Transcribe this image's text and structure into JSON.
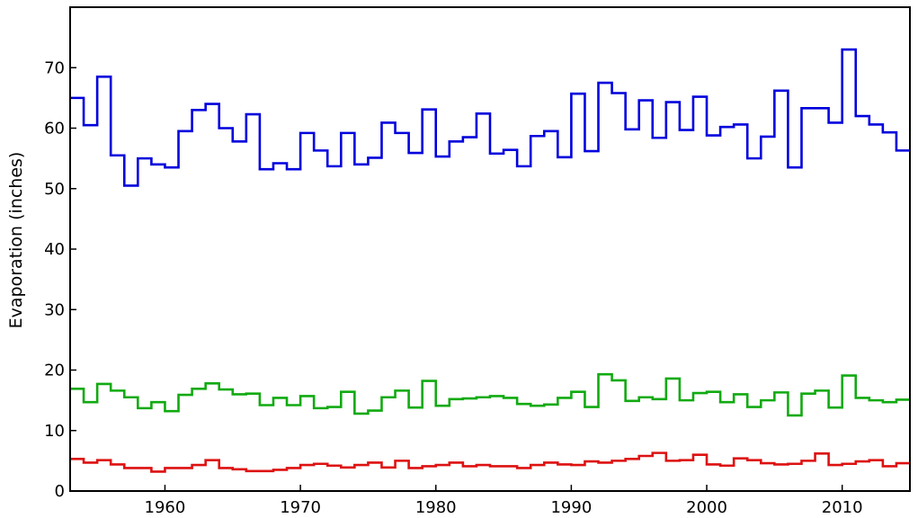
{
  "chart_data": {
    "type": "line",
    "step": true,
    "title": "",
    "xlabel": "",
    "ylabel": "Evaporation (inches)",
    "xlim": [
      1953,
      2015
    ],
    "ylim": [
      0,
      80
    ],
    "xticks": [
      1960,
      1970,
      1980,
      1990,
      2000,
      2010
    ],
    "yticks": [
      0,
      10,
      20,
      30,
      40,
      50,
      60,
      70
    ],
    "grid": false,
    "legend": "none",
    "x": [
      1953,
      1954,
      1955,
      1956,
      1957,
      1958,
      1959,
      1960,
      1961,
      1962,
      1963,
      1964,
      1965,
      1966,
      1967,
      1968,
      1969,
      1970,
      1971,
      1972,
      1973,
      1974,
      1975,
      1976,
      1977,
      1978,
      1979,
      1980,
      1981,
      1982,
      1983,
      1984,
      1985,
      1986,
      1987,
      1988,
      1989,
      1990,
      1991,
      1992,
      1993,
      1994,
      1995,
      1996,
      1997,
      1998,
      1999,
      2000,
      2001,
      2002,
      2003,
      2004,
      2005,
      2006,
      2007,
      2008,
      2009,
      2010,
      2011,
      2012,
      2013,
      2014
    ],
    "series": [
      {
        "color": "#0000dd",
        "values": [
          65,
          60.5,
          68.5,
          55.5,
          50.5,
          55,
          54,
          53.5,
          59.5,
          63,
          64,
          60,
          57.8,
          62.3,
          53.2,
          54.2,
          53.2,
          59.2,
          56.3,
          53.7,
          59.2,
          54,
          55.1,
          60.9,
          59.2,
          55.9,
          63.1,
          55.3,
          57.8,
          58.5,
          62.4,
          55.8,
          56.4,
          53.7,
          58.7,
          59.5,
          55.2,
          65.7,
          56.2,
          67.5,
          65.8,
          59.8,
          64.6,
          58.4,
          64.3,
          59.7,
          65.2,
          58.8,
          60.2,
          60.6,
          55,
          58.6,
          66.2,
          53.5,
          63.3,
          63.3,
          60.9,
          73,
          62,
          60.6,
          59.3,
          56.3
        ]
      },
      {
        "color": "#11aa11",
        "values": [
          16.9,
          14.7,
          17.7,
          16.6,
          15.5,
          13.7,
          14.7,
          13.2,
          15.9,
          16.9,
          17.8,
          16.8,
          16,
          16.1,
          14.2,
          15.4,
          14.2,
          15.7,
          13.7,
          13.9,
          16.4,
          12.8,
          13.3,
          15.5,
          16.6,
          13.8,
          18.2,
          14.1,
          15.2,
          15.3,
          15.5,
          15.7,
          15.4,
          14.4,
          14.1,
          14.3,
          15.4,
          16.4,
          13.9,
          19.3,
          18.3,
          14.9,
          15.5,
          15.2,
          18.6,
          15,
          16.2,
          16.4,
          14.7,
          16,
          13.9,
          15,
          16.3,
          12.5,
          16.1,
          16.6,
          13.8,
          19.1,
          15.4,
          15,
          14.7,
          15.1
        ]
      },
      {
        "color": "#dd1111",
        "values": [
          5.3,
          4.7,
          5.1,
          4.4,
          3.8,
          3.8,
          3.2,
          3.8,
          3.8,
          4.3,
          5.1,
          3.8,
          3.6,
          3.3,
          3.3,
          3.5,
          3.8,
          4.3,
          4.5,
          4.2,
          3.9,
          4.3,
          4.7,
          3.9,
          5,
          3.8,
          4.1,
          4.3,
          4.7,
          4.1,
          4.3,
          4.1,
          4.1,
          3.8,
          4.3,
          4.7,
          4.4,
          4.3,
          4.9,
          4.7,
          5,
          5.3,
          5.8,
          6.3,
          5,
          5.1,
          6,
          4.4,
          4.2,
          5.4,
          5.1,
          4.6,
          4.4,
          4.5,
          5,
          6.2,
          4.3,
          4.5,
          4.9,
          5.1,
          4.1,
          4.6
        ]
      }
    ]
  }
}
